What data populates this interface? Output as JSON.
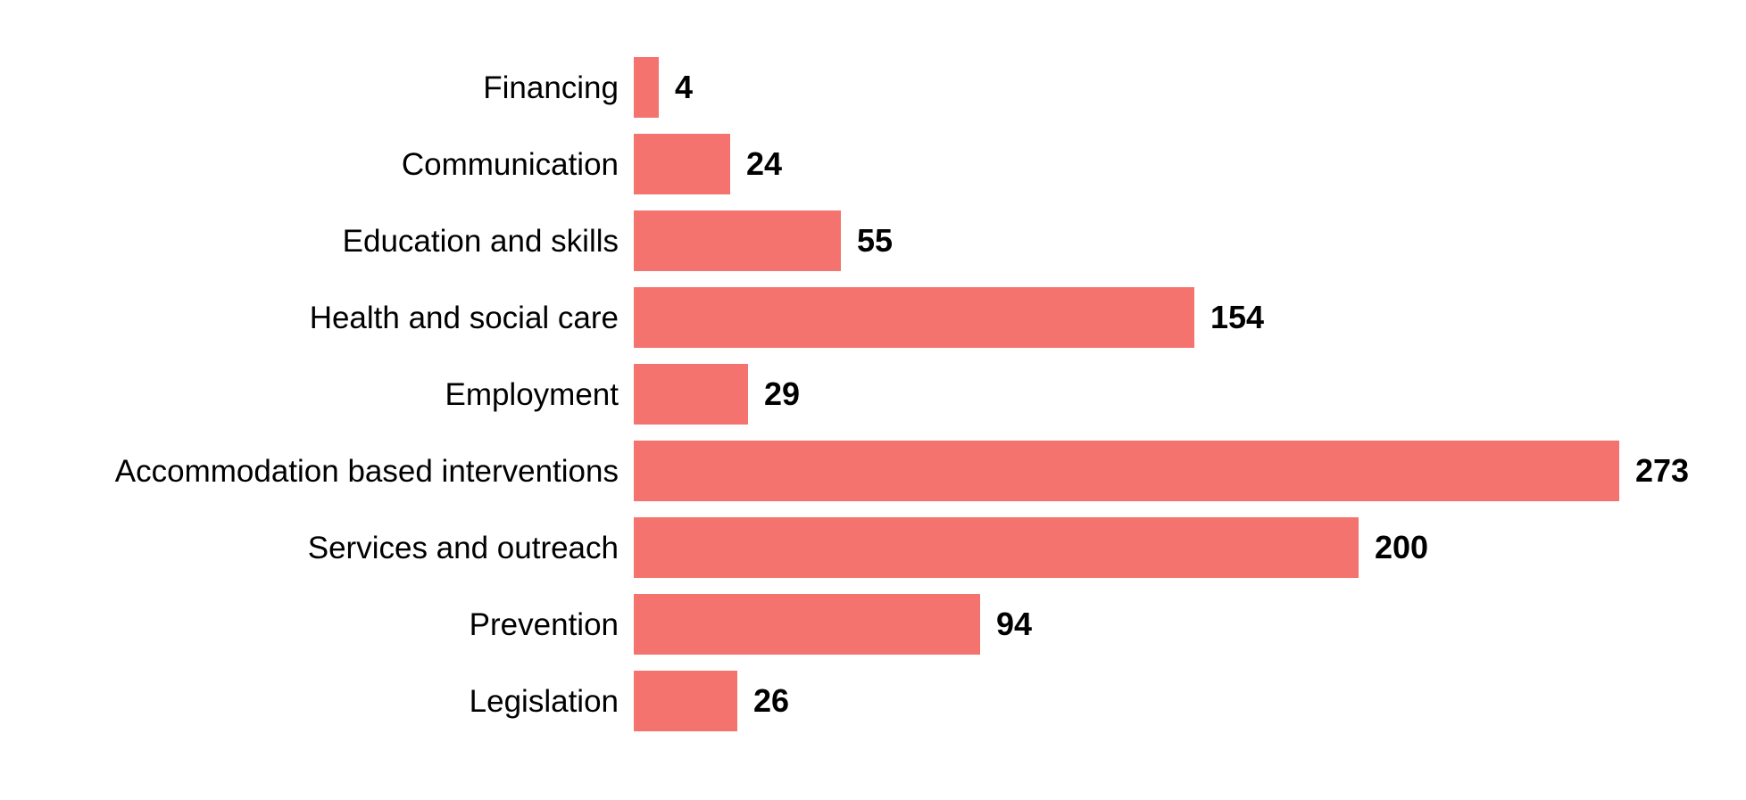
{
  "chart_data": {
    "type": "bar",
    "orientation": "horizontal",
    "title": "",
    "xlabel": "",
    "ylabel": "",
    "xlim": [
      0,
      273
    ],
    "grid": false,
    "legend": false,
    "value_labels_shown": true,
    "bar_color": "#F4736E",
    "text_color": "#000000",
    "background_color": "#FFFFFF",
    "categories": [
      "Financing",
      "Communication",
      "Education and skills",
      "Health and social care",
      "Employment",
      "Accommodation based interventions",
      "Services and outreach",
      "Prevention",
      "Legislation"
    ],
    "values": [
      4,
      24,
      55,
      154,
      29,
      273,
      200,
      94,
      26
    ]
  }
}
